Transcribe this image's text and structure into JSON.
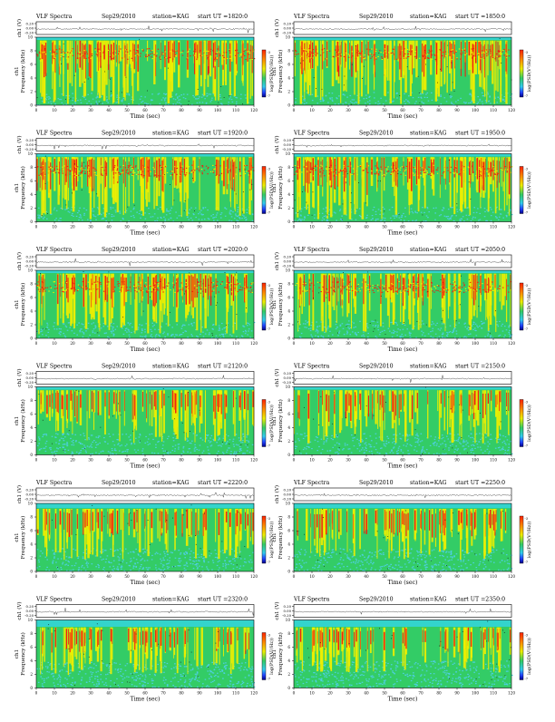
{
  "chart_data": {
    "type": "heatmap",
    "header_prefix": "VLF Spectra",
    "date": "Sep29/2010",
    "station": "station=KAG",
    "start_prefix": "start UT =",
    "ch1_label": "ch1 (V)",
    "ch1_ticks": [
      "0.20",
      "0.00",
      "-0.20"
    ],
    "ylabel": "Frequency (kHz)",
    "ylabel_prefix": "ch1",
    "yticks": [
      "0",
      "2",
      "4",
      "6",
      "8",
      "10"
    ],
    "ylim": [
      0,
      10
    ],
    "xlabel": "Time (sec)",
    "xticks": [
      "0",
      "10",
      "20",
      "30",
      "40",
      "50",
      "60",
      "70",
      "80",
      "90",
      "100",
      "110",
      "120"
    ],
    "xlim": [
      0,
      120
    ],
    "colorbar_label": "log(PSD(V²/Hz))",
    "colorbar_ticks": [
      "-3",
      "-7"
    ],
    "colors": {
      "background_band": "#33d4cc",
      "low": "#4ecfe0",
      "mid": "#33cc66",
      "high": "#eeee00",
      "peak": "#ee2211",
      "dark": "#111111"
    },
    "panels": [
      {
        "start_ut": "1820:0",
        "intensity": 0.95,
        "top_band_khz": 9.6
      },
      {
        "start_ut": "1850:0",
        "intensity": 0.92,
        "top_band_khz": 9.6
      },
      {
        "start_ut": "1920:0",
        "intensity": 0.85,
        "top_band_khz": 9.6
      },
      {
        "start_ut": "1950:0",
        "intensity": 0.85,
        "top_band_khz": 9.6
      },
      {
        "start_ut": "2020:0",
        "intensity": 0.8,
        "top_band_khz": 9.6
      },
      {
        "start_ut": "2050:0",
        "intensity": 0.75,
        "top_band_khz": 9.6
      },
      {
        "start_ut": "2120:0",
        "intensity": 0.6,
        "top_band_khz": 9.6
      },
      {
        "start_ut": "2150:0",
        "intensity": 0.6,
        "top_band_khz": 9.6
      },
      {
        "start_ut": "2220:0",
        "intensity": 0.55,
        "top_band_khz": 9.3
      },
      {
        "start_ut": "2250:0",
        "intensity": 0.55,
        "top_band_khz": 9.3
      },
      {
        "start_ut": "2320:0",
        "intensity": 0.45,
        "top_band_khz": 9.0
      },
      {
        "start_ut": "2350:0",
        "intensity": 0.4,
        "top_band_khz": 9.0
      }
    ]
  }
}
